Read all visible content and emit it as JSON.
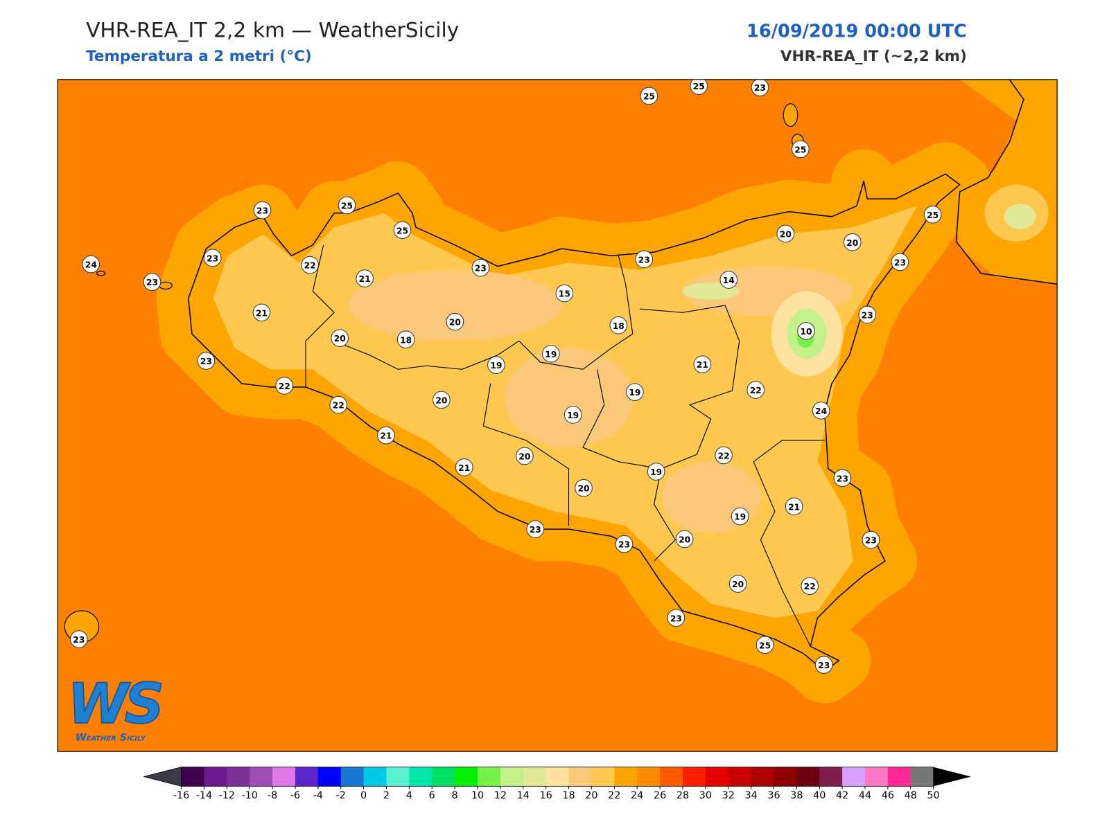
{
  "header": {
    "title": "VHR-REA_IT 2,2 km — WeatherSicily",
    "subtitle": "Temperatura a 2 metri (°C)",
    "time": "16/09/2019 00:00 UTC",
    "model": "VHR-REA_IT (~2,2 km)"
  },
  "stations": [
    25,
    25,
    23,
    25,
    23,
    25,
    25,
    23,
    24,
    23,
    22,
    21,
    23,
    23,
    20,
    20,
    25,
    23,
    14,
    15,
    21,
    20,
    18,
    23,
    10,
    20,
    18,
    19,
    19,
    21,
    23,
    22,
    19,
    22,
    20,
    22,
    19,
    24,
    21,
    20,
    22,
    21,
    19,
    20,
    23,
    21,
    19,
    23,
    23,
    20,
    23,
    20,
    22,
    23,
    23,
    25,
    23
  ],
  "colorbar": {
    "ticks": [
      -16,
      -14,
      -12,
      -10,
      -8,
      -6,
      -4,
      -2,
      0,
      2,
      4,
      6,
      8,
      10,
      12,
      14,
      16,
      18,
      20,
      22,
      24,
      26,
      28,
      30,
      32,
      34,
      36,
      38,
      40,
      42,
      44,
      46,
      48,
      50
    ],
    "colors": [
      "#40004b",
      "#6a1a8a",
      "#7b3294",
      "#9e4fb3",
      "#de77ea",
      "#5a28c8",
      "#0000ff",
      "#1878d0",
      "#00c8e6",
      "#5af0d2",
      "#00e6aa",
      "#00e060",
      "#00f000",
      "#78f04a",
      "#c3f08a",
      "#e1e896",
      "#ffe1a0",
      "#fac878",
      "#ffc850",
      "#ffa500",
      "#ff8c00",
      "#ff5a00",
      "#ff1e00",
      "#e60000",
      "#c80000",
      "#aa0000",
      "#8c0000",
      "#6e0014",
      "#7d1e4b",
      "#d8a0ff",
      "#ff78c8",
      "#ff2896",
      "#787878",
      "#383838"
    ],
    "under_color": "#3a3a4a",
    "over_color": "#000000"
  },
  "logo": {
    "mark": "WS",
    "name": "Weather Sicily"
  }
}
